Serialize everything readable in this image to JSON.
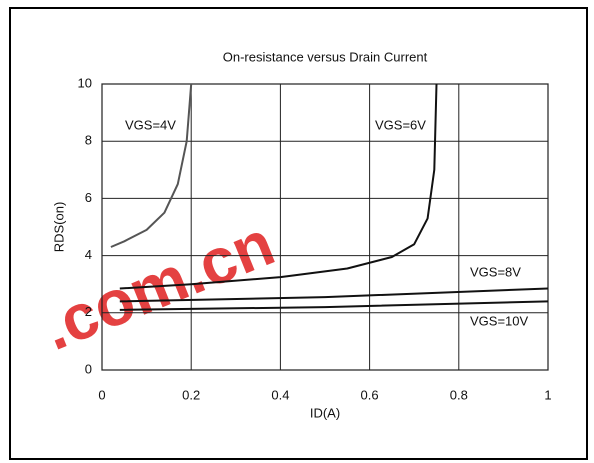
{
  "chart_data": {
    "type": "line",
    "title": "On-resistance versus Drain Current",
    "x_label": "ID(A)",
    "y_label": "RDS(on)",
    "watermark": ".com.cn",
    "xlim": [
      0,
      1
    ],
    "ylim": [
      0,
      10
    ],
    "xticks": [
      0,
      0.2,
      0.4,
      0.6,
      0.8,
      1
    ],
    "yticks": [
      0,
      2,
      4,
      6,
      8,
      10
    ],
    "grid": true,
    "series": [
      {
        "name": "VGS=4V",
        "color": "#555555",
        "x": [
          0.02,
          0.05,
          0.1,
          0.14,
          0.17,
          0.19,
          0.2
        ],
        "values": [
          4.3,
          4.5,
          4.9,
          5.5,
          6.5,
          8,
          10
        ]
      },
      {
        "name": "VGS=6V",
        "color": "#111111",
        "x": [
          0.04,
          0.2,
          0.4,
          0.55,
          0.65,
          0.7,
          0.73,
          0.745,
          0.75
        ],
        "values": [
          2.85,
          3.0,
          3.25,
          3.55,
          3.95,
          4.4,
          5.3,
          7,
          10
        ]
      },
      {
        "name": "VGS=8V",
        "color": "#111111",
        "x": [
          0.04,
          0.5,
          1
        ],
        "values": [
          2.4,
          2.55,
          2.85
        ]
      },
      {
        "name": "VGS=10V",
        "color": "#111111",
        "x": [
          0.04,
          0.5,
          1
        ],
        "values": [
          2.1,
          2.2,
          2.4
        ]
      }
    ]
  }
}
